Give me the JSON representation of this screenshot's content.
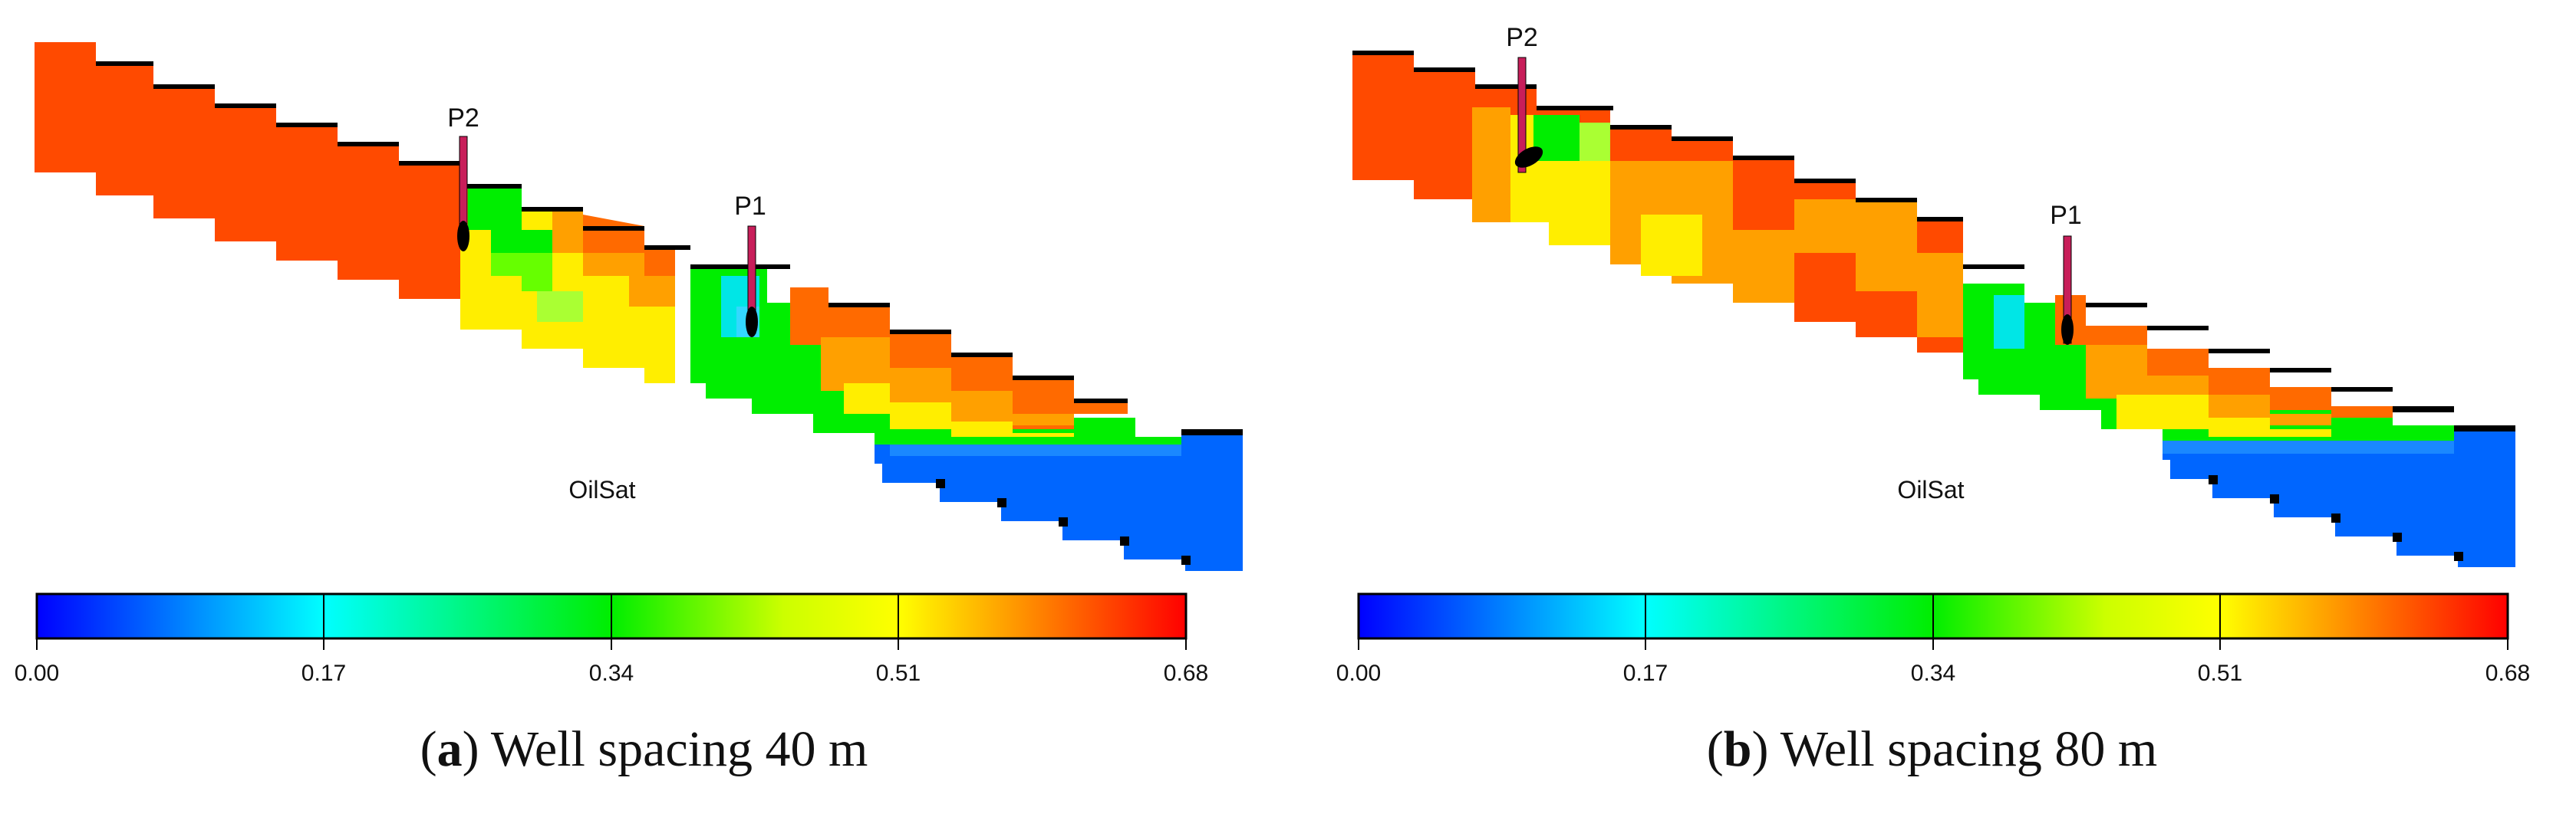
{
  "panels": [
    {
      "id": "a",
      "caption_letter": "a",
      "caption_text": "Well spacing 40 m",
      "property_label": "OilSat",
      "wells": [
        {
          "name": "P2"
        },
        {
          "name": "P1"
        }
      ]
    },
    {
      "id": "b",
      "caption_letter": "b",
      "caption_text": "Well spacing 80 m",
      "property_label": "OilSat",
      "wells": [
        {
          "name": "P2"
        },
        {
          "name": "P1"
        }
      ]
    }
  ],
  "colorbar": {
    "ticks": [
      "0.00",
      "0.17",
      "0.34",
      "0.51",
      "0.68"
    ],
    "colors": [
      "#0000ff",
      "#00c8ff",
      "#00ffff",
      "#00ff44",
      "#00ee00",
      "#ffff00",
      "#ff8800",
      "#ff0000"
    ]
  },
  "colors": {
    "oil_high": "#ff4a00",
    "oil_mid": "#ffa000",
    "yellow": "#ffee00",
    "green": "#00ee00",
    "cyan": "#00e6e6",
    "water": "#0066ff",
    "well": "#c81e5a",
    "edge": "#000000"
  }
}
